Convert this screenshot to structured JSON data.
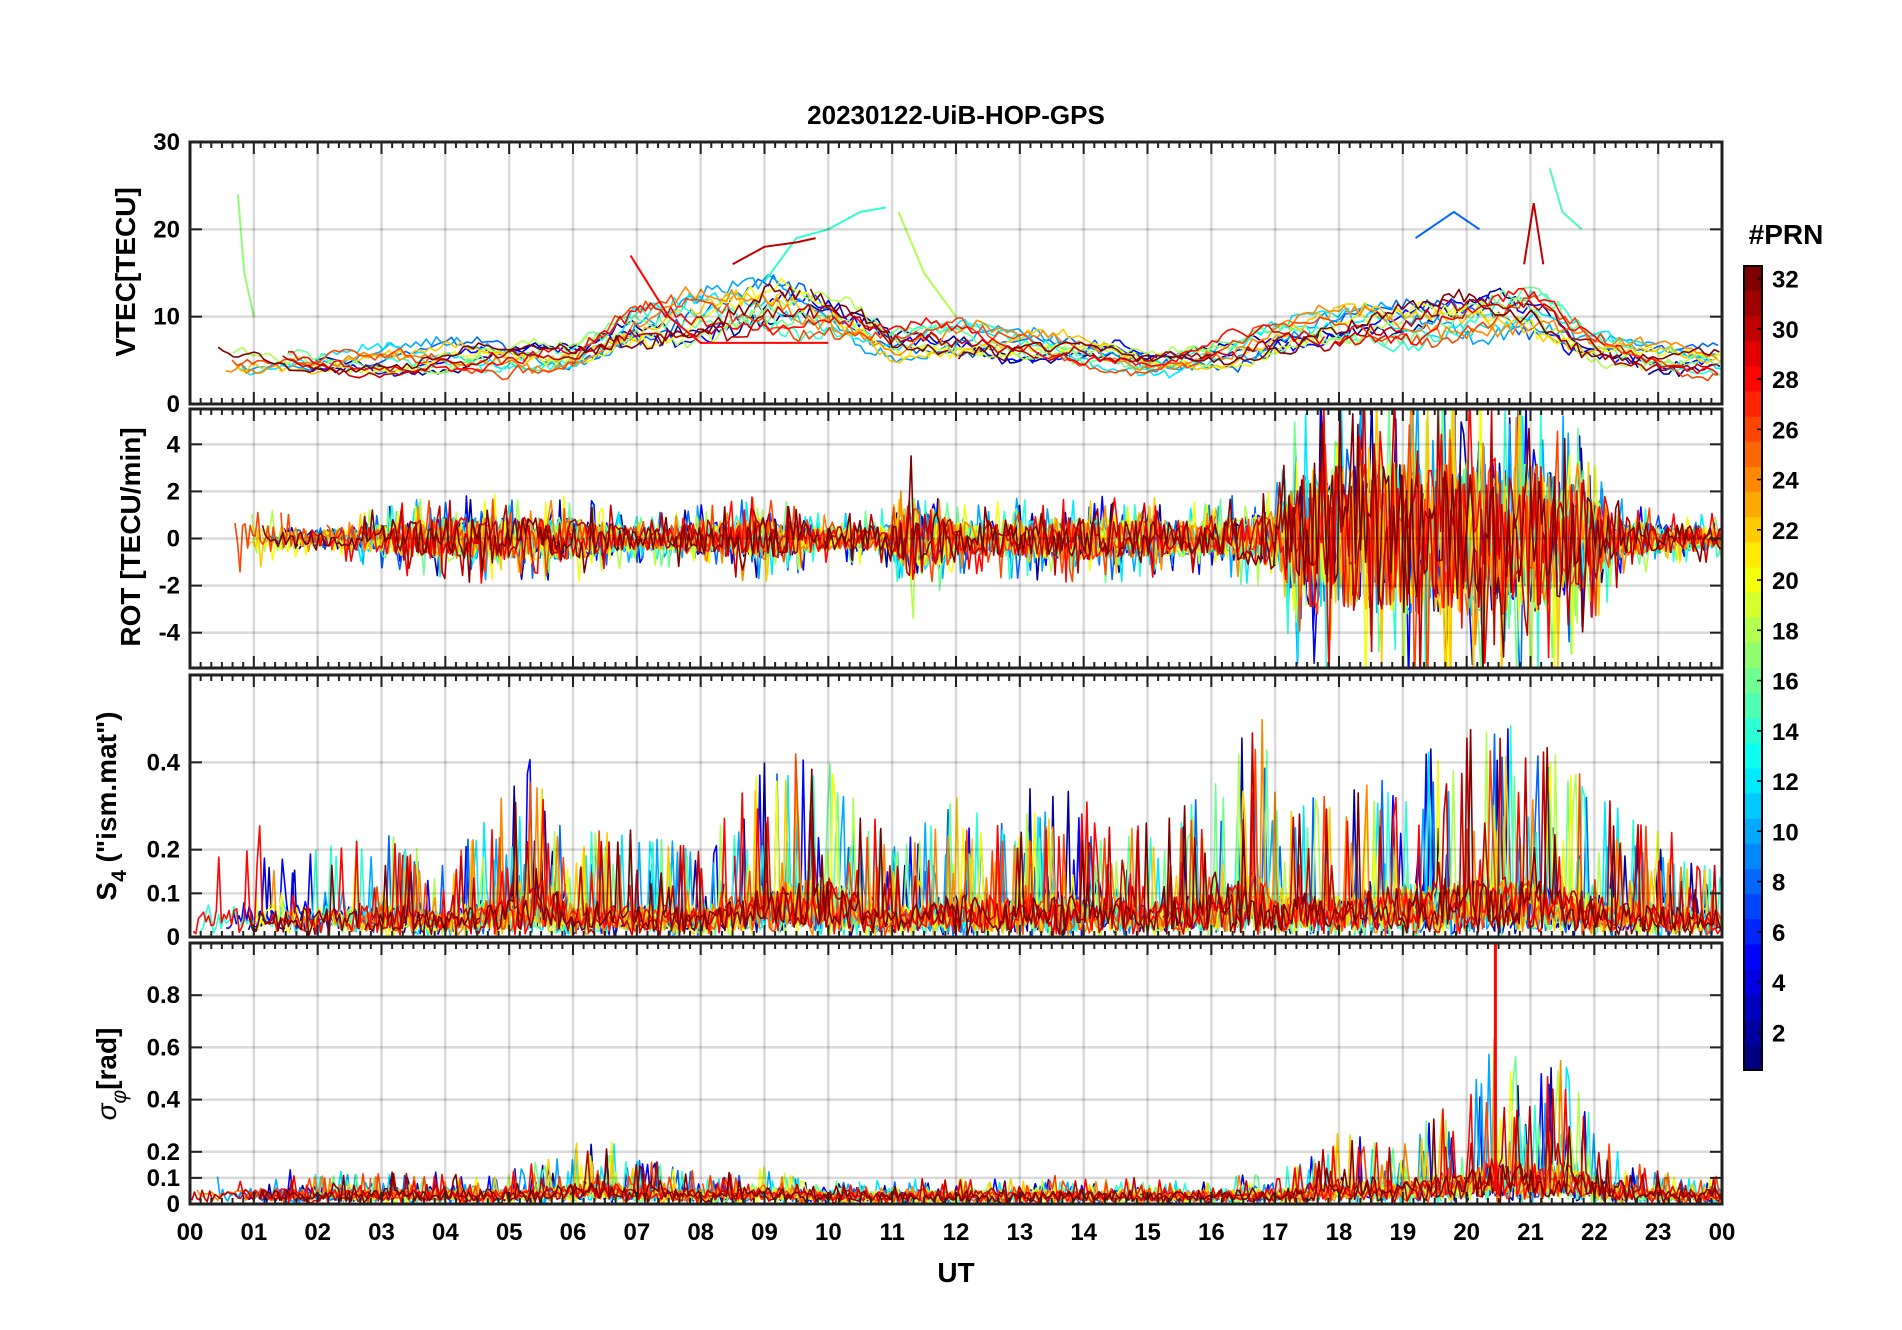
{
  "title": "20230122-UiB-HOP-GPS",
  "colorbar": {
    "title": "#PRN",
    "range": [
      1,
      32
    ],
    "ticks": [
      2,
      4,
      6,
      8,
      10,
      12,
      14,
      16,
      18,
      20,
      22,
      24,
      26,
      28,
      30,
      32
    ],
    "colormap": "jet"
  },
  "chart_data": {
    "type": "line",
    "xlabel": "UT",
    "x_unit": "hours",
    "xlim": [
      0,
      24
    ],
    "x_ticks": [
      0,
      1,
      2,
      3,
      4,
      5,
      6,
      7,
      8,
      9,
      10,
      11,
      12,
      13,
      14,
      15,
      16,
      17,
      18,
      19,
      20,
      21,
      22,
      23,
      24
    ],
    "x_tick_labels": [
      "00",
      "01",
      "02",
      "03",
      "04",
      "05",
      "06",
      "07",
      "08",
      "09",
      "10",
      "11",
      "12",
      "13",
      "14",
      "15",
      "16",
      "17",
      "18",
      "19",
      "20",
      "21",
      "22",
      "23",
      "00"
    ],
    "grid": true,
    "color_by": "#PRN",
    "panels": [
      {
        "id": "vtec",
        "ylabel": "VTEC[TECU]",
        "ylim": [
          0,
          30
        ],
        "y_ticks": [
          0,
          10,
          20,
          30
        ],
        "y_tick_labels": [
          "0",
          "10",
          "20",
          "30"
        ],
        "activity": [
          [
            0,
            7
          ],
          [
            2,
            6
          ],
          [
            4,
            7
          ],
          [
            6,
            7
          ],
          [
            7,
            12
          ],
          [
            9,
            15
          ],
          [
            10,
            13
          ],
          [
            11,
            9
          ],
          [
            12,
            10
          ],
          [
            13,
            9
          ],
          [
            14,
            8
          ],
          [
            15,
            6
          ],
          [
            16,
            7
          ],
          [
            17,
            10
          ],
          [
            18,
            12
          ],
          [
            19,
            12
          ],
          [
            20,
            13
          ],
          [
            21,
            14
          ],
          [
            22,
            9
          ],
          [
            23,
            7
          ],
          [
            24,
            6
          ]
        ],
        "mode": "smooth",
        "notable_series": [
          {
            "prn": 28,
            "points": [
              [
                6.9,
                17
              ],
              [
                7.5,
                10
              ],
              [
                8,
                7
              ],
              [
                9,
                7
              ],
              [
                10,
                7
              ]
            ]
          },
          {
            "prn": 14,
            "points": [
              [
                9,
                14
              ],
              [
                9.5,
                19
              ],
              [
                10,
                20
              ],
              [
                10.5,
                22
              ],
              [
                10.9,
                22.5
              ]
            ]
          },
          {
            "prn": 30,
            "points": [
              [
                8.5,
                16
              ],
              [
                9,
                18
              ],
              [
                9.5,
                18.5
              ],
              [
                9.8,
                19
              ]
            ]
          },
          {
            "prn": 18,
            "points": [
              [
                11.1,
                22
              ],
              [
                11.5,
                15
              ],
              [
                12,
                10
              ]
            ]
          },
          {
            "prn": 8,
            "points": [
              [
                19.2,
                19
              ],
              [
                19.8,
                22
              ],
              [
                20.2,
                20
              ]
            ]
          },
          {
            "prn": 15,
            "points": [
              [
                21.3,
                27
              ],
              [
                21.5,
                22
              ],
              [
                21.8,
                20
              ]
            ]
          },
          {
            "prn": 30,
            "points": [
              [
                20.9,
                16
              ],
              [
                21.05,
                23
              ],
              [
                21.2,
                16
              ]
            ]
          },
          {
            "prn": 17,
            "points": [
              [
                0.75,
                24
              ],
              [
                0.85,
                15
              ],
              [
                1,
                10
              ]
            ]
          }
        ]
      },
      {
        "id": "rot",
        "ylabel": "ROT [TECU/min]",
        "ylim": [
          -5.5,
          5.5
        ],
        "y_ticks": [
          -4,
          -2,
          0,
          2,
          4
        ],
        "y_tick_labels": [
          "-4",
          "-2",
          "0",
          "2",
          "4"
        ],
        "activity": [
          [
            0,
            1.5
          ],
          [
            2,
            0.6
          ],
          [
            4,
            1.5
          ],
          [
            6,
            1.5
          ],
          [
            7,
            0.8
          ],
          [
            9,
            1.5
          ],
          [
            10,
            0.8
          ],
          [
            11,
            1.0
          ],
          [
            11.3,
            3
          ],
          [
            12,
            1.2
          ],
          [
            14,
            1.5
          ],
          [
            16,
            1.2
          ],
          [
            17,
            2
          ],
          [
            17.5,
            5
          ],
          [
            19,
            5.5
          ],
          [
            20,
            5.5
          ],
          [
            21,
            5.5
          ],
          [
            22,
            3
          ],
          [
            22.5,
            1.2
          ],
          [
            24,
            0.8
          ]
        ],
        "mode": "noise"
      },
      {
        "id": "s4",
        "ylabel": "S4 (\"ism.mat\")",
        "ylabel_main": "S",
        "ylabel_sub": "4",
        "ylabel_rest": " (\"ism.mat\")",
        "ylim": [
          0,
          0.6
        ],
        "y_ticks": [
          0,
          0.1,
          0.2,
          0.4
        ],
        "y_tick_labels": [
          "0",
          "0.1",
          "0.2",
          "0.4"
        ],
        "activity": [
          [
            0,
            0.12
          ],
          [
            1,
            0.15
          ],
          [
            2,
            0.12
          ],
          [
            3,
            0.15
          ],
          [
            4,
            0.1
          ],
          [
            5,
            0.2
          ],
          [
            5.5,
            0.3
          ],
          [
            6,
            0.15
          ],
          [
            7,
            0.15
          ],
          [
            8,
            0.12
          ],
          [
            9,
            0.25
          ],
          [
            10,
            0.3
          ],
          [
            11,
            0.12
          ],
          [
            12,
            0.2
          ],
          [
            13,
            0.2
          ],
          [
            14,
            0.2
          ],
          [
            15,
            0.15
          ],
          [
            16,
            0.2
          ],
          [
            16.7,
            0.35
          ],
          [
            17,
            0.2
          ],
          [
            18,
            0.2
          ],
          [
            19,
            0.25
          ],
          [
            20,
            0.3
          ],
          [
            21,
            0.3
          ],
          [
            22,
            0.2
          ],
          [
            23,
            0.15
          ],
          [
            24,
            0.1
          ]
        ],
        "mode": "spiky"
      },
      {
        "id": "sigma",
        "ylabel": "σφ[rad]",
        "ylabel_main": "σ",
        "ylabel_sub": "φ",
        "ylabel_rest": "[rad]",
        "ylim": [
          0,
          1.0
        ],
        "y_ticks": [
          0,
          0.1,
          0.2,
          0.4,
          0.6,
          0.8
        ],
        "y_tick_labels": [
          "0",
          "0.1",
          "0.2",
          "0.4",
          "0.6",
          "0.8"
        ],
        "activity": [
          [
            0,
            0.06
          ],
          [
            5,
            0.06
          ],
          [
            6.5,
            0.15
          ],
          [
            7,
            0.1
          ],
          [
            8,
            0.06
          ],
          [
            9,
            0.08
          ],
          [
            10,
            0.04
          ],
          [
            12,
            0.04
          ],
          [
            14,
            0.05
          ],
          [
            16,
            0.04
          ],
          [
            17,
            0.06
          ],
          [
            18,
            0.15
          ],
          [
            19,
            0.15
          ],
          [
            20,
            0.25
          ],
          [
            20.5,
            0.4
          ],
          [
            21,
            0.3
          ],
          [
            21.5,
            0.35
          ],
          [
            22,
            0.2
          ],
          [
            22.5,
            0.08
          ],
          [
            24,
            0.05
          ]
        ],
        "mode": "spiky",
        "peak": {
          "x": 20.45,
          "y": 1.0
        }
      }
    ]
  }
}
